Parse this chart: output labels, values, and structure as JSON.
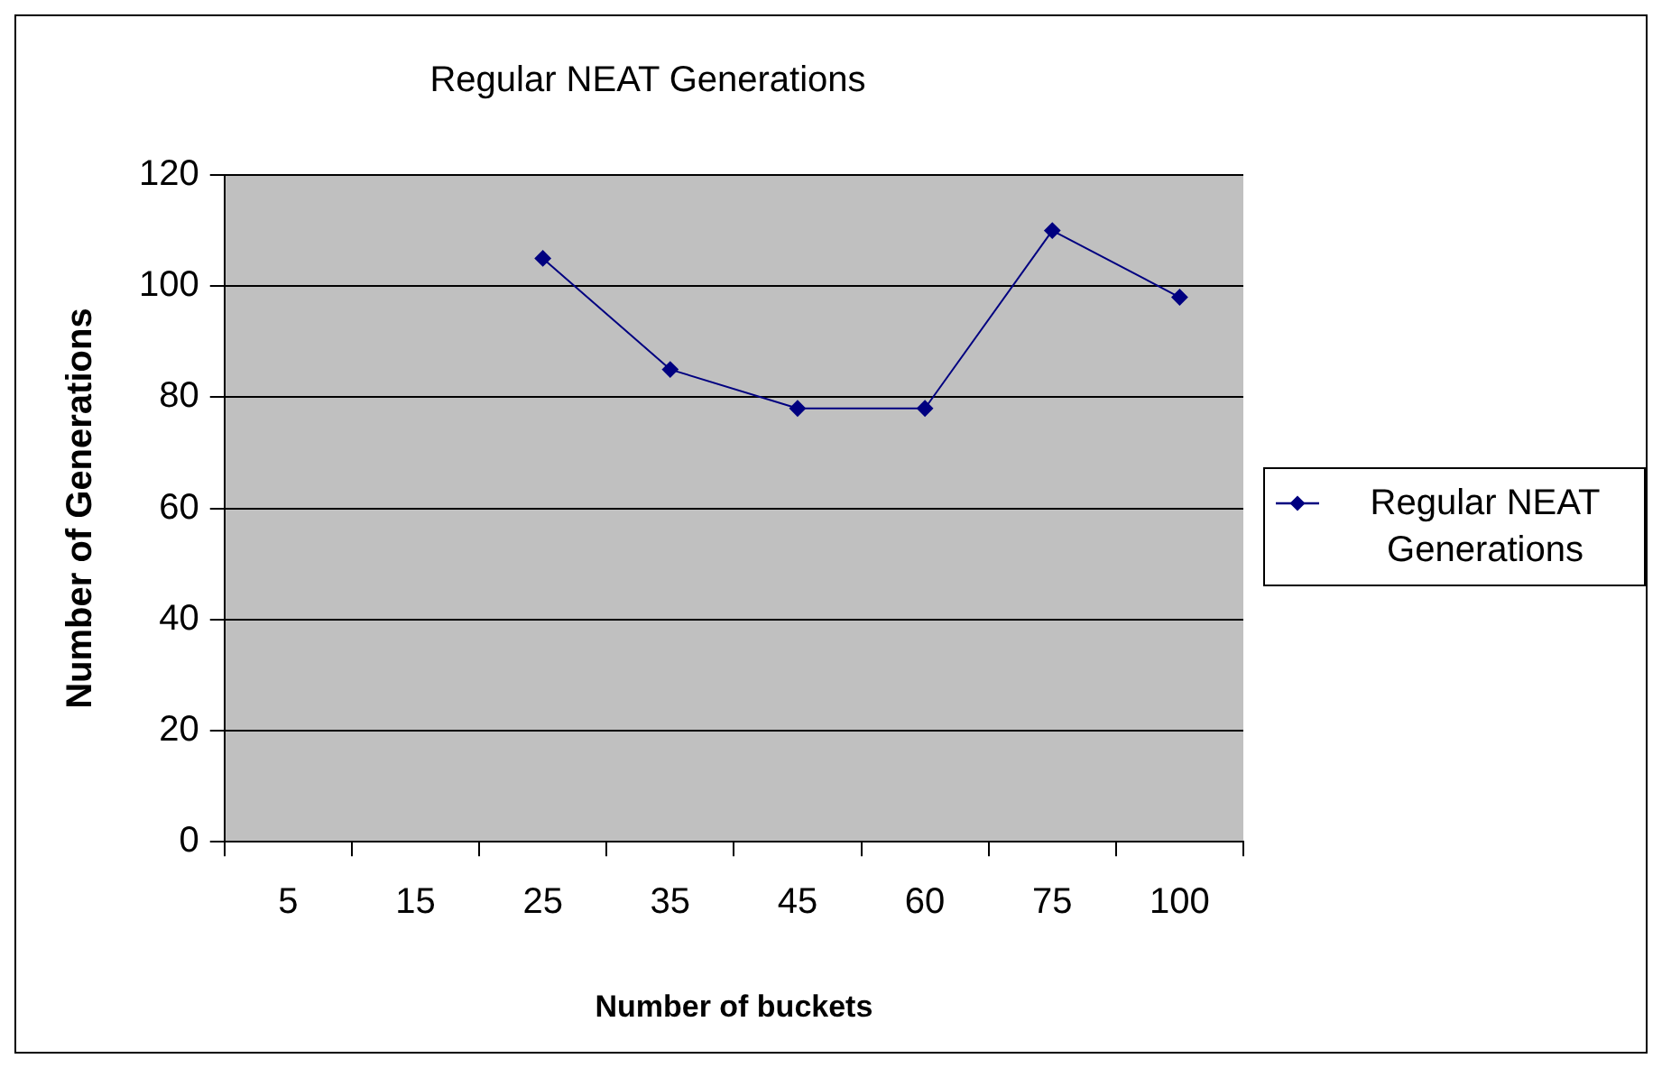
{
  "chart_data": {
    "type": "line",
    "title": "Regular NEAT Generations",
    "xlabel": "Number of buckets",
    "ylabel": "Number of Generations",
    "categories": [
      "5",
      "15",
      "25",
      "35",
      "45",
      "60",
      "75",
      "100"
    ],
    "series": [
      {
        "name": "Regular NEAT Generations",
        "color": "#000080",
        "values": [
          null,
          null,
          105,
          85,
          78,
          78,
          110,
          98
        ]
      }
    ],
    "ylim": [
      0,
      120
    ],
    "yticks": [
      0,
      20,
      40,
      60,
      80,
      100,
      120
    ],
    "grid": "y",
    "legend": "right",
    "marker": "diamond",
    "line_style": "solid"
  }
}
